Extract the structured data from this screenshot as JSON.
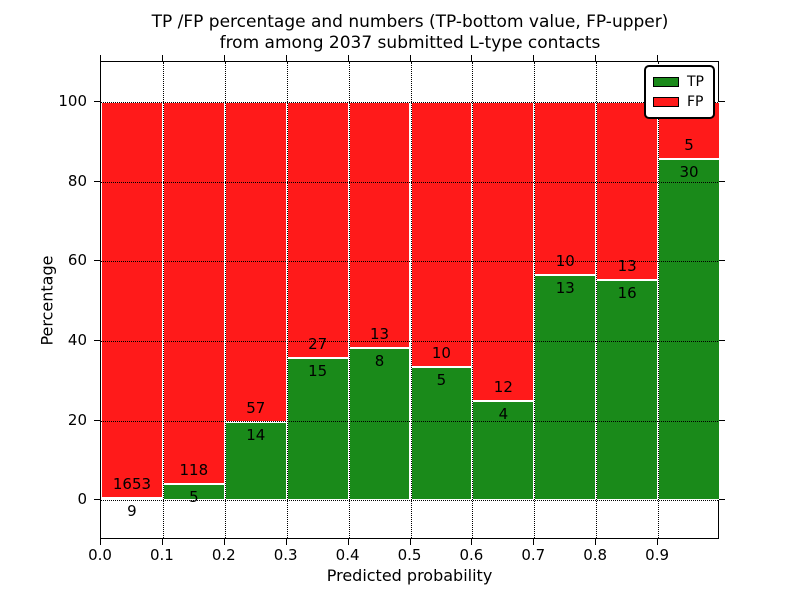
{
  "chart_data": {
    "type": "bar",
    "stacking": "percent",
    "title_lines": [
      "TP /FP percentage and numbers (TP-bottom value, FP-upper)",
      "from among 2037 submitted L-type contacts"
    ],
    "xlabel": "Predicted probability",
    "ylabel": "Percentage",
    "xlim": [
      0.0,
      1.0
    ],
    "ylim": [
      -10,
      110
    ],
    "xticks": [
      "0.0",
      "0.1",
      "0.2",
      "0.3",
      "0.4",
      "0.5",
      "0.6",
      "0.7",
      "0.8",
      "0.9"
    ],
    "yticks": [
      "0",
      "20",
      "40",
      "60",
      "80",
      "100"
    ],
    "grid": true,
    "grid_style": "dotted",
    "legend": {
      "position": "upper right",
      "entries": [
        {
          "label": "TP",
          "color": "#1a8a1a"
        },
        {
          "label": "FP",
          "color": "#ff1a1a"
        }
      ]
    },
    "total_contacts": 2037,
    "bins": [
      {
        "x_start": 0.0,
        "x_end": 0.1,
        "tp": 9,
        "fp": 1653
      },
      {
        "x_start": 0.1,
        "x_end": 0.2,
        "tp": 5,
        "fp": 118
      },
      {
        "x_start": 0.2,
        "x_end": 0.3,
        "tp": 14,
        "fp": 57
      },
      {
        "x_start": 0.3,
        "x_end": 0.4,
        "tp": 15,
        "fp": 27
      },
      {
        "x_start": 0.4,
        "x_end": 0.5,
        "tp": 8,
        "fp": 13
      },
      {
        "x_start": 0.5,
        "x_end": 0.6,
        "tp": 5,
        "fp": 10
      },
      {
        "x_start": 0.6,
        "x_end": 0.7,
        "tp": 4,
        "fp": 12
      },
      {
        "x_start": 0.7,
        "x_end": 0.8,
        "tp": 13,
        "fp": 10
      },
      {
        "x_start": 0.8,
        "x_end": 0.9,
        "tp": 16,
        "fp": 13
      },
      {
        "x_start": 0.9,
        "x_end": 1.0,
        "tp": 30,
        "fp": 5
      }
    ],
    "colors": {
      "tp": "#1a8a1a",
      "fp": "#ff1a1a",
      "grid": "#000000",
      "text": "#000000"
    }
  }
}
